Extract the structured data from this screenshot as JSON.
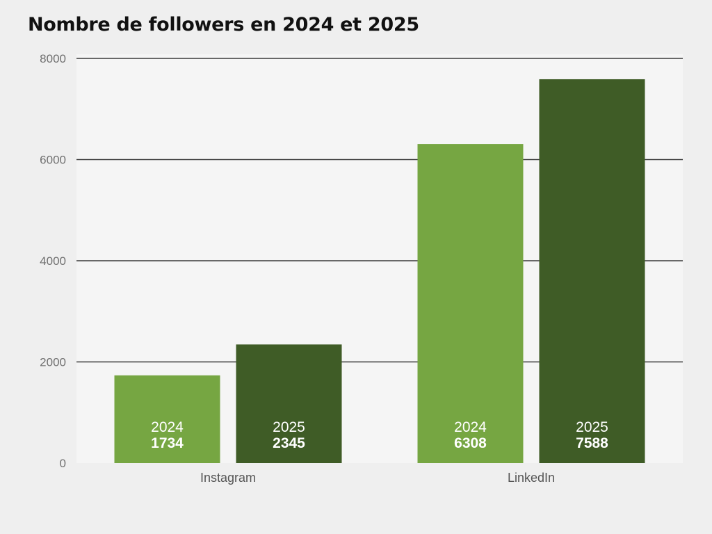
{
  "chart_data": {
    "type": "bar",
    "title": "Nombre de followers en 2024 et 2025",
    "xlabel": "",
    "ylabel": "",
    "categories": [
      "Instagram",
      "LinkedIn"
    ],
    "series": [
      {
        "name": "2024",
        "values": [
          1734,
          6308
        ],
        "color": "#76a642"
      },
      {
        "name": "2025",
        "values": [
          2345,
          7588
        ],
        "color": "#3f5c26"
      }
    ],
    "ylim": [
      0,
      8000
    ],
    "yticks": [
      "0",
      "2000",
      "4000",
      "6000",
      "8000"
    ],
    "grid": true,
    "legend": "none",
    "plot_background": "#f5f5f5"
  }
}
